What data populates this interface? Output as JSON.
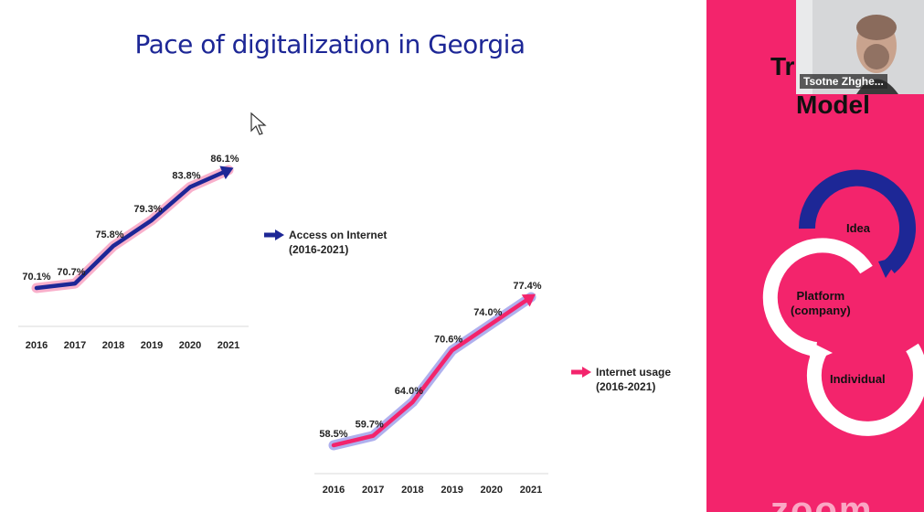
{
  "slide": {
    "title": "Pace of digitalization in Georgia",
    "bottom_text": "... ... ... ... ... ...",
    "chart_access_legend": "Access on Internet\n(2016-2021)",
    "chart_usage_legend": "Internet usage\n(2016-2021)"
  },
  "side_panel": {
    "title_line1": "Tr",
    "title_line2": "Model",
    "cycle_labels": [
      "Idea",
      "Platform\n(company)",
      "Individual"
    ],
    "webcam_name": "Tsotne Zhghe...",
    "watermark": "zoom"
  },
  "colors": {
    "slide_title": "#1d2796",
    "access_line": "#1d2796",
    "access_glow": "#f46fa0",
    "usage_line": "#f3246c",
    "usage_glow": "#6d6fe0",
    "side_bg": "#f3246c"
  },
  "chart_data": [
    {
      "type": "line",
      "title": "Access on Internet (2016-2021)",
      "categories": [
        "2016",
        "2017",
        "2018",
        "2019",
        "2020",
        "2021"
      ],
      "series": [
        {
          "name": "Access on Internet (2016-2021)",
          "values": [
            70.1,
            70.7,
            75.8,
            79.3,
            83.8,
            86.1
          ],
          "labels": [
            "70.1%",
            "70.7%",
            "75.8%",
            "79.3%",
            "83.8%",
            "86.1%"
          ]
        }
      ],
      "legend": "right"
    },
    {
      "type": "line",
      "title": "Internet usage (2016-2021)",
      "categories": [
        "2016",
        "2017",
        "2018",
        "2019",
        "2020",
        "2021"
      ],
      "series": [
        {
          "name": "Internet usage (2016-2021)",
          "values": [
            58.5,
            59.7,
            64.0,
            70.6,
            74.0,
            77.4
          ],
          "labels": [
            "58.5%",
            "59.7%",
            "64.0%",
            "70.6%",
            "74.0%",
            "77.4%"
          ]
        }
      ],
      "legend": "right"
    }
  ]
}
